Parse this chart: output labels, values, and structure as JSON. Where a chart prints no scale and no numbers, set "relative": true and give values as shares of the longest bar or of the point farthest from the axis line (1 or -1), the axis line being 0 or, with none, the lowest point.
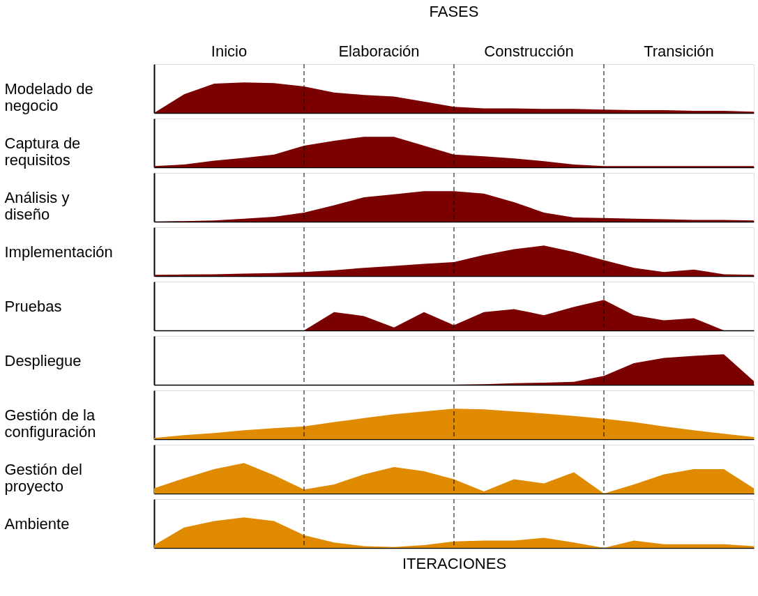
{
  "chart_data": [
    {
      "type": "area",
      "relative": true,
      "title": "FASES",
      "grid": "x",
      "annotations": [
        "Inicio",
        "Elaboración",
        "Construcción",
        "Transición"
      ],
      "ylabel": "Modelado de negocio",
      "color": "#7b0000",
      "categories": [
        null,
        null,
        null,
        null,
        null,
        null,
        null,
        null,
        null,
        null,
        null,
        null,
        null,
        null,
        null,
        null,
        null,
        null,
        null,
        null,
        null
      ],
      "values": [
        0,
        0.61,
        0.96,
        1,
        0.98,
        0.87,
        0.67,
        0.59,
        0.54,
        0.37,
        0.2,
        0.15,
        0.15,
        0.13,
        0.13,
        0.11,
        0.09,
        0.09,
        0.07,
        0.07,
        0.04
      ]
    },
    {
      "type": "area",
      "relative": true,
      "ylabel": "Captura de requisitos",
      "grid": "x",
      "color": "#7b0000",
      "categories": [
        null,
        null,
        null,
        null,
        null,
        null,
        null,
        null,
        null,
        null,
        null,
        null,
        null,
        null,
        null,
        null,
        null,
        null,
        null,
        null,
        null
      ],
      "values": [
        0.04,
        0.09,
        0.22,
        0.31,
        0.42,
        0.71,
        0.87,
        1,
        1,
        0.71,
        0.42,
        0.36,
        0.29,
        0.2,
        0.09,
        0.04,
        0.04,
        0.04,
        0.04,
        0.04,
        0.04
      ]
    },
    {
      "type": "area",
      "relative": true,
      "ylabel": "Análisis y diseño",
      "grid": "x",
      "color": "#7b0000",
      "categories": [
        null,
        null,
        null,
        null,
        null,
        null,
        null,
        null,
        null,
        null,
        null,
        null,
        null,
        null,
        null,
        null,
        null,
        null,
        null,
        null,
        null
      ],
      "values": [
        0,
        0.02,
        0.04,
        0.1,
        0.16,
        0.3,
        0.54,
        0.8,
        0.9,
        1,
        1,
        0.92,
        0.64,
        0.3,
        0.14,
        0.12,
        0.1,
        0.08,
        0.06,
        0.06,
        0.04
      ]
    },
    {
      "type": "area",
      "relative": true,
      "ylabel": "Implementación",
      "grid": "x",
      "color": "#7b0000",
      "categories": [
        null,
        null,
        null,
        null,
        null,
        null,
        null,
        null,
        null,
        null,
        null,
        null,
        null,
        null,
        null,
        null,
        null,
        null,
        null,
        null,
        null
      ],
      "values": [
        0.04,
        0.05,
        0.06,
        0.08,
        0.1,
        0.13,
        0.19,
        0.27,
        0.33,
        0.4,
        0.46,
        0.69,
        0.88,
        1,
        0.79,
        0.52,
        0.27,
        0.13,
        0.21,
        0.06,
        0.04
      ]
    },
    {
      "type": "area",
      "relative": true,
      "ylabel": "Pruebas",
      "grid": "x",
      "color": "#7b0000",
      "categories": [
        null,
        null,
        null,
        null,
        null,
        null,
        null,
        null,
        null,
        null,
        null,
        null,
        null,
        null,
        null,
        null,
        null,
        null,
        null,
        null,
        null
      ],
      "values": [
        0,
        0,
        0,
        0,
        0,
        0,
        0.6,
        0.47,
        0.1,
        0.6,
        0.17,
        0.6,
        0.7,
        0.5,
        0.77,
        1,
        0.5,
        0.33,
        0.4,
        0,
        0
      ]
    },
    {
      "type": "area",
      "relative": true,
      "ylabel": "Despliegue",
      "grid": "x",
      "color": "#7b0000",
      "categories": [
        null,
        null,
        null,
        null,
        null,
        null,
        null,
        null,
        null,
        null,
        null,
        null,
        null,
        null,
        null,
        null,
        null,
        null,
        null,
        null,
        null
      ],
      "values": [
        0,
        0,
        0,
        0,
        0,
        0,
        0,
        0,
        0,
        0,
        0,
        0.02,
        0.05,
        0.07,
        0.1,
        0.29,
        0.71,
        0.88,
        0.95,
        1,
        0.12
      ]
    },
    {
      "type": "area",
      "relative": true,
      "ylabel": "Gestión de la configuración",
      "grid": "x",
      "color": "#e08a00",
      "categories": [
        null,
        null,
        null,
        null,
        null,
        null,
        null,
        null,
        null,
        null,
        null,
        null,
        null,
        null,
        null,
        null,
        null,
        null,
        null,
        null,
        null
      ],
      "values": [
        0.04,
        0.13,
        0.2,
        0.29,
        0.36,
        0.42,
        0.56,
        0.69,
        0.82,
        0.91,
        1,
        0.98,
        0.91,
        0.84,
        0.76,
        0.67,
        0.56,
        0.42,
        0.29,
        0.18,
        0.07
      ]
    },
    {
      "type": "area",
      "relative": true,
      "ylabel": "Gestión del proyecto",
      "grid": "x",
      "color": "#e08a00",
      "categories": [
        null,
        null,
        null,
        null,
        null,
        null,
        null,
        null,
        null,
        null,
        null,
        null,
        null,
        null,
        null,
        null,
        null,
        null,
        null,
        null,
        null
      ],
      "values": [
        0.17,
        0.5,
        0.8,
        1,
        0.6,
        0.13,
        0.3,
        0.63,
        0.87,
        0.73,
        0.47,
        0.07,
        0.47,
        0.33,
        0.7,
        0,
        0.3,
        0.63,
        0.8,
        0.8,
        0.17
      ]
    },
    {
      "type": "area",
      "relative": true,
      "ylabel": "Ambiente",
      "grid": "x",
      "xlabel": "ITERACIONES",
      "color": "#e08a00",
      "categories": [
        null,
        null,
        null,
        null,
        null,
        null,
        null,
        null,
        null,
        null,
        null,
        null,
        null,
        null,
        null,
        null,
        null,
        null,
        null,
        null,
        null
      ],
      "values": [
        0.09,
        0.67,
        0.88,
        1,
        0.88,
        0.42,
        0.18,
        0.06,
        0.03,
        0.09,
        0.21,
        0.24,
        0.24,
        0.33,
        0.18,
        0,
        0.24,
        0.12,
        0.12,
        0.12,
        0.06
      ]
    }
  ]
}
